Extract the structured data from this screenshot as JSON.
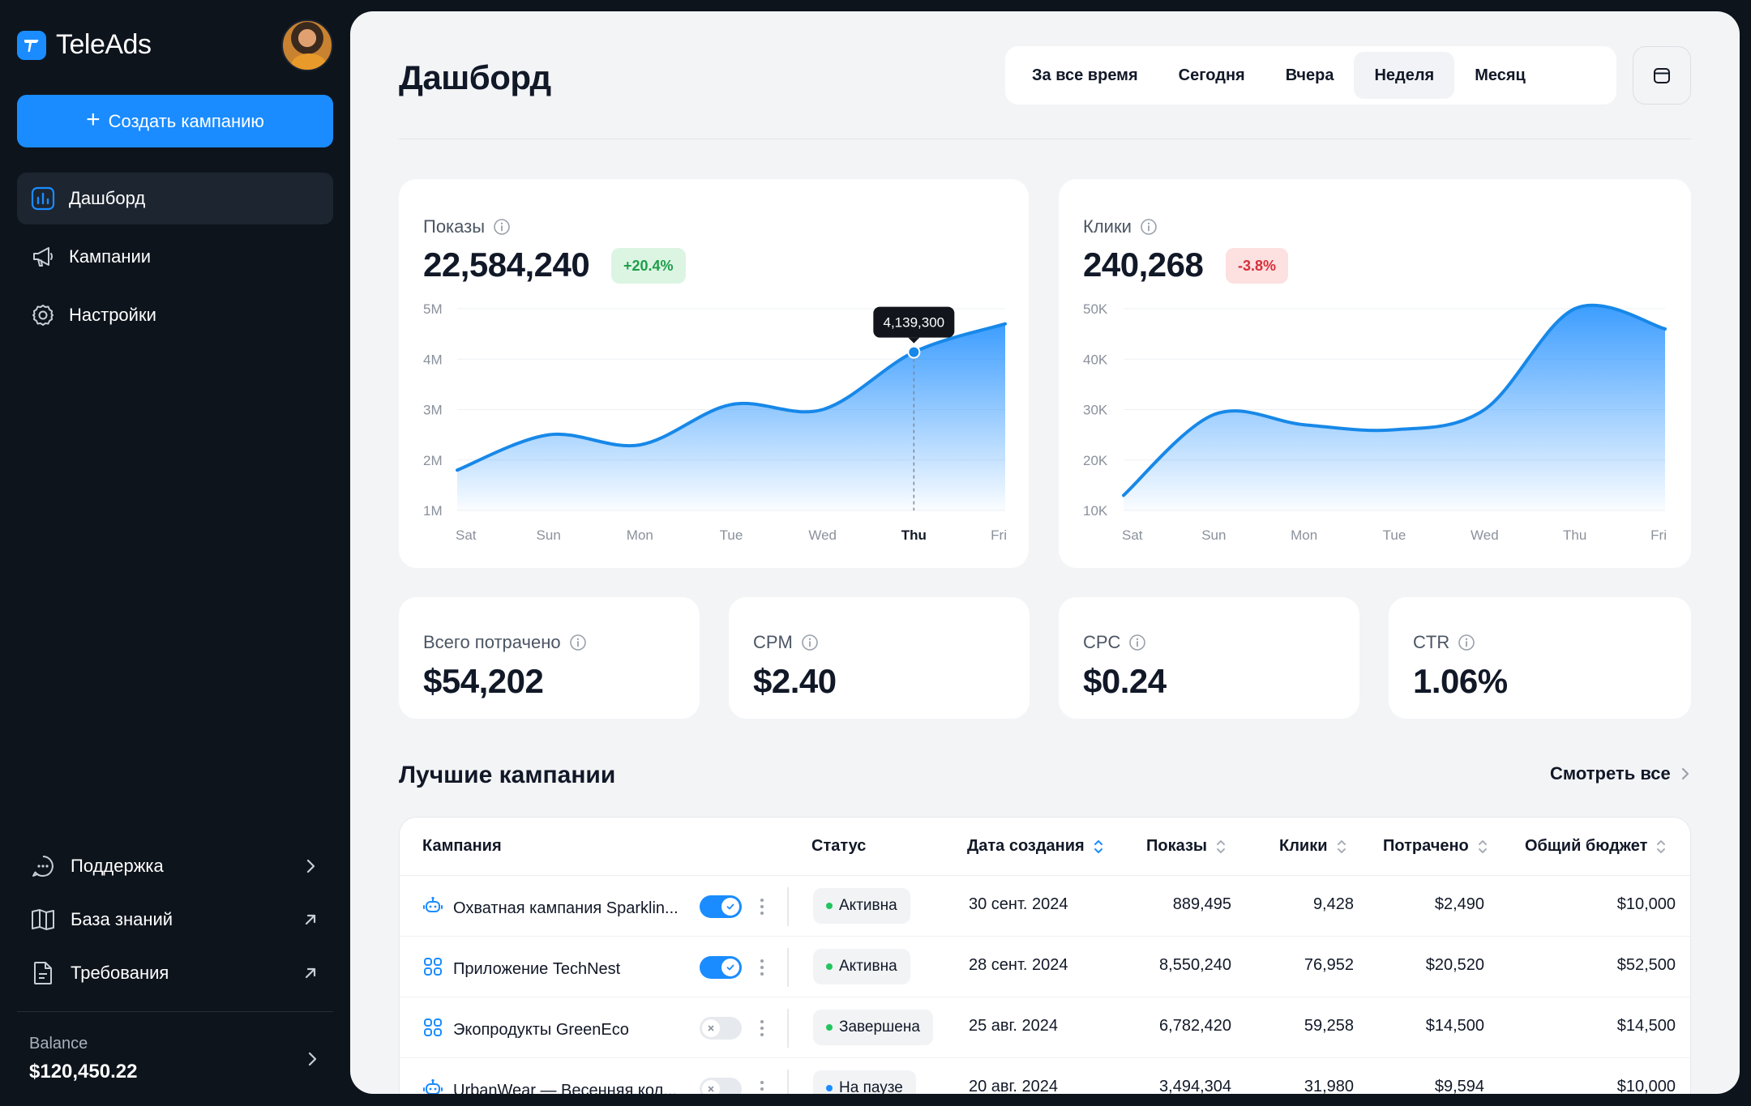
{
  "app": {
    "name": "TeleAds"
  },
  "sidebar": {
    "create_label": "Создать кампанию",
    "nav": [
      {
        "label": "Дашборд",
        "icon": "chart-bars-icon",
        "active": true
      },
      {
        "label": "Кампании",
        "icon": "megaphone-icon"
      },
      {
        "label": "Настройки",
        "icon": "gear-icon"
      }
    ],
    "bottom": [
      {
        "label": "Поддержка",
        "icon": "chat-bubble-icon",
        "trail": "chevron-right-icon"
      },
      {
        "label": "База знаний",
        "icon": "book-icon",
        "trail": "arrow-up-right-icon"
      },
      {
        "label": "Требования",
        "icon": "document-icon",
        "trail": "arrow-up-right-icon"
      }
    ],
    "balance_label": "Balance",
    "balance_value": "$120,450.22"
  },
  "header": {
    "title": "Дашборд",
    "periods": [
      "За все время",
      "Сегодня",
      "Вчера",
      "Неделя",
      "Месяц"
    ],
    "active_period": "Неделя"
  },
  "impressions": {
    "label": "Показы",
    "value": "22,584,240",
    "delta": "+20.4%"
  },
  "clicks": {
    "label": "Клики",
    "value": "240,268",
    "delta": "-3.8%"
  },
  "chart_data": [
    {
      "type": "area",
      "categories": [
        "Sat",
        "Sun",
        "Mon",
        "Tue",
        "Wed",
        "Thu",
        "Fri"
      ],
      "series": [
        {
          "values": [
            1800000,
            2500000,
            2300000,
            3100000,
            3000000,
            4139300,
            4700000
          ]
        }
      ],
      "y_ticks": [
        "5M",
        "4M",
        "3M",
        "2M",
        "1M"
      ],
      "ylim": [
        1000000,
        5000000
      ],
      "highlight": {
        "category": "Thu",
        "label": "4,139,300"
      },
      "color": "#1a8cff"
    },
    {
      "type": "area",
      "categories": [
        "Sat",
        "Sun",
        "Mon",
        "Tue",
        "Wed",
        "Thu",
        "Fri"
      ],
      "series": [
        {
          "values": [
            13000,
            29000,
            27000,
            26000,
            30000,
            50000,
            46000
          ]
        }
      ],
      "y_ticks": [
        "50K",
        "40K",
        "30K",
        "20K",
        "10K"
      ],
      "ylim": [
        10000,
        50000
      ],
      "color": "#1a8cff"
    }
  ],
  "metrics": [
    {
      "label": "Всего потрачено",
      "value": "$54,202"
    },
    {
      "label": "CPM",
      "value": "$2.40"
    },
    {
      "label": "CPC",
      "value": "$0.24"
    },
    {
      "label": "CTR",
      "value": "1.06%"
    }
  ],
  "table": {
    "title": "Лучшие кампании",
    "see_all": "Смотреть все",
    "columns": [
      "Кампания",
      "Статус",
      "Дата создания",
      "Показы",
      "Клики",
      "Потрачено",
      "Общий бюджет"
    ],
    "rows": [
      {
        "name": "Охватная кампания Sparklin...",
        "icon": "robot-icon",
        "enabled": true,
        "status": "Активна",
        "status_color": "#22c55e",
        "date": "30 сент. 2024",
        "impressions": "889,495",
        "clicks": "9,428",
        "spent": "$2,490",
        "budget": "$10,000"
      },
      {
        "name": "Приложение TechNest",
        "icon": "apps-grid-icon",
        "enabled": true,
        "status": "Активна",
        "status_color": "#22c55e",
        "date": "28 сент. 2024",
        "impressions": "8,550,240",
        "clicks": "76,952",
        "spent": "$20,520",
        "budget": "$52,500"
      },
      {
        "name": "Экопродукты GreenEco",
        "icon": "apps-grid-icon",
        "enabled": false,
        "status": "Завершена",
        "status_color": "#22c55e",
        "date": "25 авг. 2024",
        "impressions": "6,782,420",
        "clicks": "59,258",
        "spent": "$14,500",
        "budget": "$14,500"
      },
      {
        "name": "UrbanWear — Весенняя кол...",
        "icon": "robot-icon",
        "enabled": false,
        "status": "На паузе",
        "status_color": "#1a8cff",
        "date": "20 авг. 2024",
        "impressions": "3,494,304",
        "clicks": "31,980",
        "spent": "$9,594",
        "budget": "$10,000"
      }
    ]
  }
}
